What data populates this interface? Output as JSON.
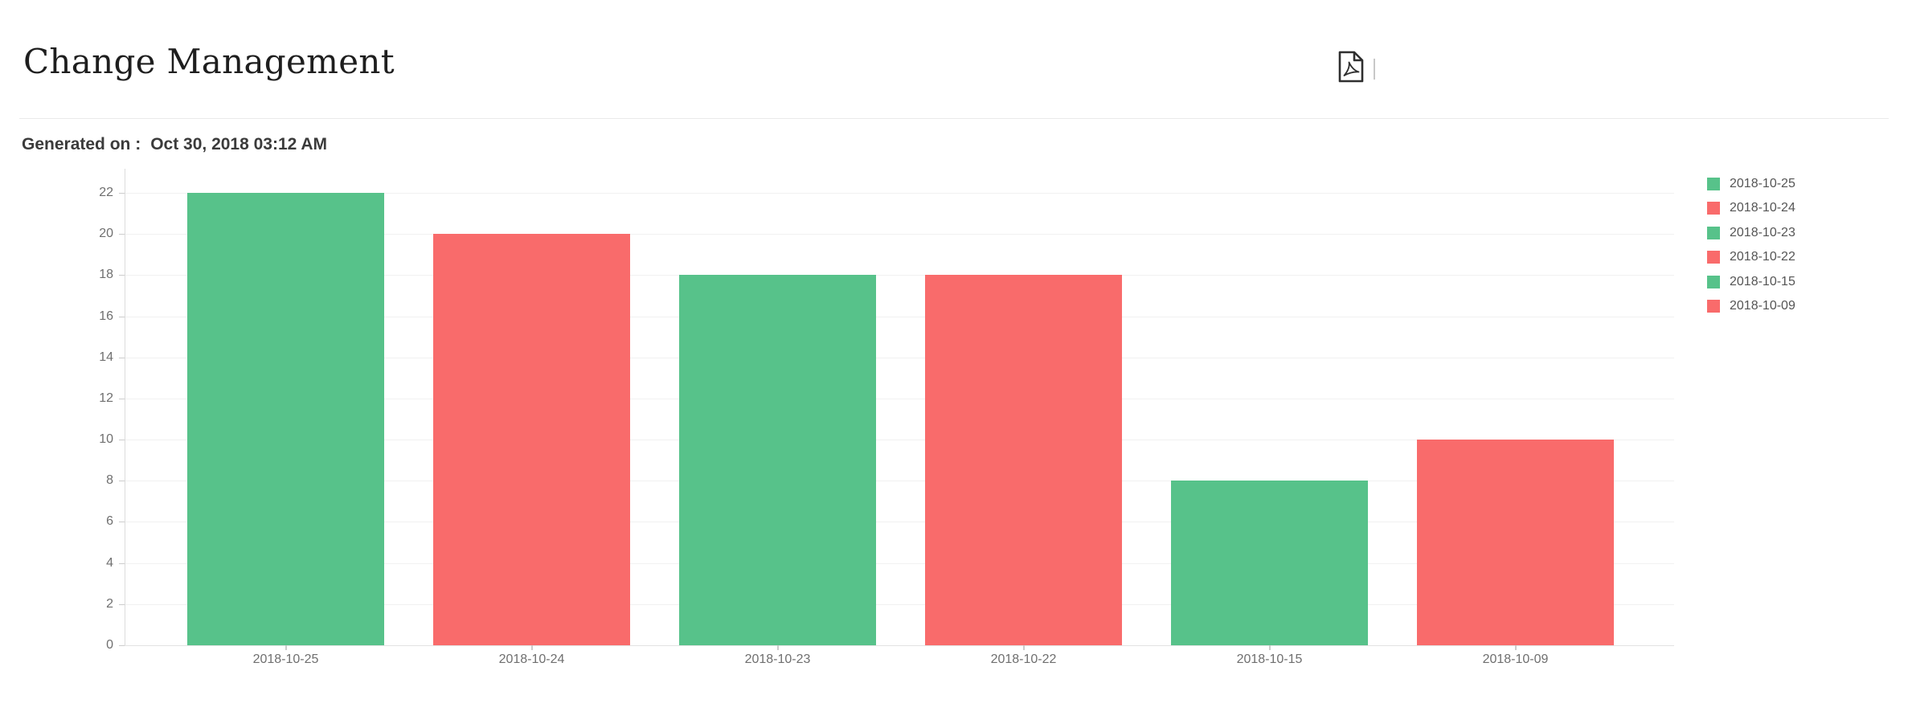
{
  "header": {
    "title": "Change Management",
    "actions": [
      {
        "name": "pdf-export",
        "icon": "pdf-file-icon"
      }
    ]
  },
  "meta": {
    "generated_label": "Generated on :",
    "generated_value": "Oct 30, 2018 03:12 AM"
  },
  "chart_data": {
    "type": "bar",
    "title": "",
    "xlabel": "",
    "ylabel": "",
    "categories": [
      "2018-10-25",
      "2018-10-24",
      "2018-10-23",
      "2018-10-22",
      "2018-10-15",
      "2018-10-09"
    ],
    "values": [
      22,
      20,
      18,
      18,
      8,
      10
    ],
    "bar_colors": [
      "#57c28a",
      "#f96b6b",
      "#57c28a",
      "#f96b6b",
      "#57c28a",
      "#f96b6b"
    ],
    "yticks": [
      0,
      2,
      4,
      6,
      8,
      10,
      12,
      14,
      16,
      18,
      20,
      22
    ],
    "ylim": [
      0,
      23.1
    ],
    "grid": true,
    "legend_position": "right",
    "legend": [
      {
        "label": "2018-10-25",
        "color": "#57c28a"
      },
      {
        "label": "2018-10-24",
        "color": "#f96b6b"
      },
      {
        "label": "2018-10-23",
        "color": "#57c28a"
      },
      {
        "label": "2018-10-22",
        "color": "#f96b6b"
      },
      {
        "label": "2018-10-15",
        "color": "#57c28a"
      },
      {
        "label": "2018-10-09",
        "color": "#f96b6b"
      }
    ]
  },
  "colors": {
    "bar_green": "#57c28a",
    "bar_red": "#f96b6b",
    "gridline": "#f1f1f1",
    "axis_line": "#dcdcdc",
    "tick": "#cccccc",
    "axis_label_text": "#6f6f6f",
    "legend_text": "#555555",
    "title_text": "#1e1e1e",
    "meta_text": "#3b3b3b",
    "divider": "#eaeaea",
    "icon": "#2f2f2f"
  }
}
